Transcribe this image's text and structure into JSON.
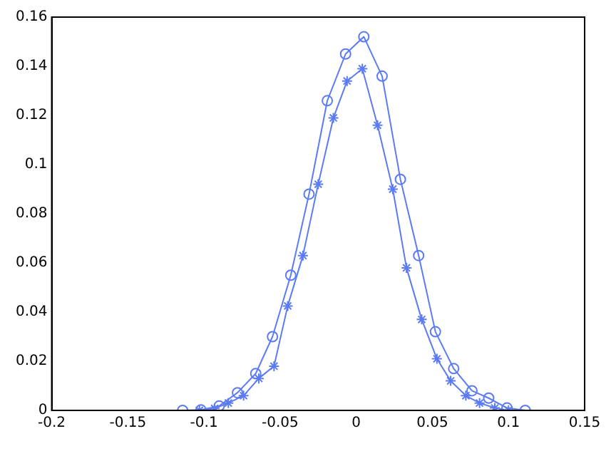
{
  "chart_data": {
    "type": "line",
    "xlim": [
      -0.2,
      0.15
    ],
    "xticks": [
      -0.2,
      -0.15,
      -0.1,
      -0.05,
      0,
      0.05,
      0.1,
      0.15
    ],
    "ylim": [
      0,
      0.16
    ],
    "yticks": [
      0,
      0.02,
      0.04,
      0.06,
      0.08,
      0.1,
      0.12,
      0.14,
      0.16
    ],
    "grid": false,
    "legend": false,
    "series": [
      {
        "color": "#5b7bf5",
        "marker": "circle",
        "x": [
          -0.114,
          -0.102,
          -0.09,
          -0.078,
          -0.066,
          -0.055,
          -0.043,
          -0.031,
          -0.019,
          -0.007,
          0.005,
          0.017,
          0.029,
          0.041,
          0.052,
          0.064,
          0.076,
          0.087,
          0.099,
          0.111
        ],
        "values": [
          0,
          0.0002,
          0.0018,
          0.0072,
          0.015,
          0.03,
          0.055,
          0.088,
          0.126,
          0.145,
          0.152,
          0.136,
          0.094,
          0.063,
          0.032,
          0.017,
          0.008,
          0.005,
          0.001,
          0
        ]
      },
      {
        "color": "#5b7bf5",
        "marker": "cross",
        "x": [
          -0.103,
          -0.093,
          -0.084,
          -0.074,
          -0.064,
          -0.054,
          -0.045,
          -0.035,
          -0.025,
          -0.015,
          -0.006,
          0.004,
          0.014,
          0.024,
          0.033,
          0.043,
          0.053,
          0.062,
          0.072,
          0.081,
          0.091,
          0.1
        ],
        "values": [
          0,
          0.0008,
          0.003,
          0.006,
          0.013,
          0.018,
          0.0425,
          0.063,
          0.092,
          0.119,
          0.134,
          0.139,
          0.116,
          0.09,
          0.058,
          0.037,
          0.021,
          0.012,
          0.006,
          0.003,
          0.001,
          0
        ]
      }
    ]
  }
}
